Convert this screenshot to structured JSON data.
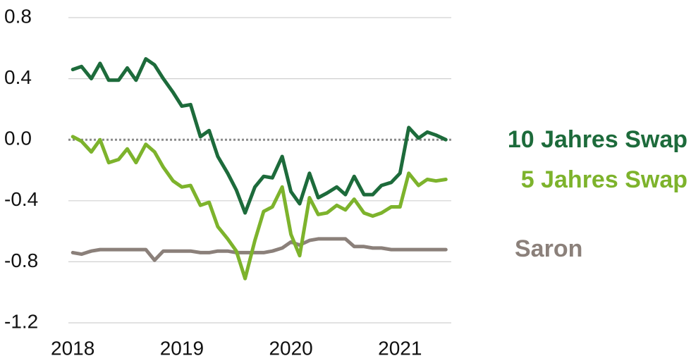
{
  "chart_data": {
    "type": "line",
    "x": [
      2018,
      2018.08,
      2018.17,
      2018.25,
      2018.33,
      2018.42,
      2018.5,
      2018.58,
      2018.67,
      2018.75,
      2018.83,
      2018.92,
      2019,
      2019.08,
      2019.17,
      2019.25,
      2019.33,
      2019.42,
      2019.5,
      2019.58,
      2019.67,
      2019.75,
      2019.83,
      2019.92,
      2020,
      2020.08,
      2020.17,
      2020.25,
      2020.33,
      2020.42,
      2020.5,
      2020.58,
      2020.67,
      2020.75,
      2020.83,
      2020.92,
      2021,
      2021.08,
      2021.17,
      2021.25,
      2021.33,
      2021.42
    ],
    "series": [
      {
        "name": "10 Jahres Swap",
        "color": "#1d6b3b",
        "values": [
          0.46,
          0.48,
          0.4,
          0.5,
          0.39,
          0.39,
          0.47,
          0.39,
          0.53,
          0.49,
          0.4,
          0.31,
          0.22,
          0.23,
          0.02,
          0.06,
          -0.11,
          -0.22,
          -0.33,
          -0.48,
          -0.31,
          -0.24,
          -0.25,
          -0.11,
          -0.34,
          -0.42,
          -0.22,
          -0.38,
          -0.35,
          -0.31,
          -0.36,
          -0.24,
          -0.36,
          -0.36,
          -0.3,
          -0.28,
          -0.22,
          0.08,
          0.01,
          0.05,
          0.03,
          0.0
        ]
      },
      {
        "name": "5 Jahres Swap",
        "color": "#7db32c",
        "values": [
          0.02,
          -0.01,
          -0.08,
          0.0,
          -0.15,
          -0.13,
          -0.06,
          -0.15,
          -0.03,
          -0.08,
          -0.18,
          -0.27,
          -0.31,
          -0.3,
          -0.43,
          -0.41,
          -0.57,
          -0.65,
          -0.73,
          -0.91,
          -0.66,
          -0.47,
          -0.44,
          -0.31,
          -0.62,
          -0.76,
          -0.38,
          -0.49,
          -0.48,
          -0.43,
          -0.46,
          -0.39,
          -0.48,
          -0.5,
          -0.48,
          -0.44,
          -0.44,
          -0.22,
          -0.3,
          -0.26,
          -0.27,
          -0.26
        ]
      },
      {
        "name": "Saron",
        "color": "#8b807a",
        "values": [
          -0.74,
          -0.75,
          -0.73,
          -0.72,
          -0.72,
          -0.72,
          -0.72,
          -0.72,
          -0.72,
          -0.79,
          -0.73,
          -0.73,
          -0.73,
          -0.73,
          -0.74,
          -0.74,
          -0.73,
          -0.73,
          -0.74,
          -0.74,
          -0.74,
          -0.74,
          -0.73,
          -0.71,
          -0.67,
          -0.69,
          -0.66,
          -0.65,
          -0.65,
          -0.65,
          -0.65,
          -0.7,
          -0.7,
          -0.71,
          -0.71,
          -0.72,
          -0.72,
          -0.72,
          -0.72,
          -0.72,
          -0.72,
          -0.72
        ]
      }
    ],
    "xlim": [
      2017.96,
      2021.47
    ],
    "xticks": [
      2018,
      2019,
      2020,
      2021
    ],
    "ylim": [
      -1.2,
      0.8
    ],
    "yticks": [
      -1.2,
      -0.8,
      -0.4,
      {
        "value": 0,
        "label": "0.0"
      },
      0.4,
      0.8
    ],
    "grid": true,
    "zero_line": true
  }
}
